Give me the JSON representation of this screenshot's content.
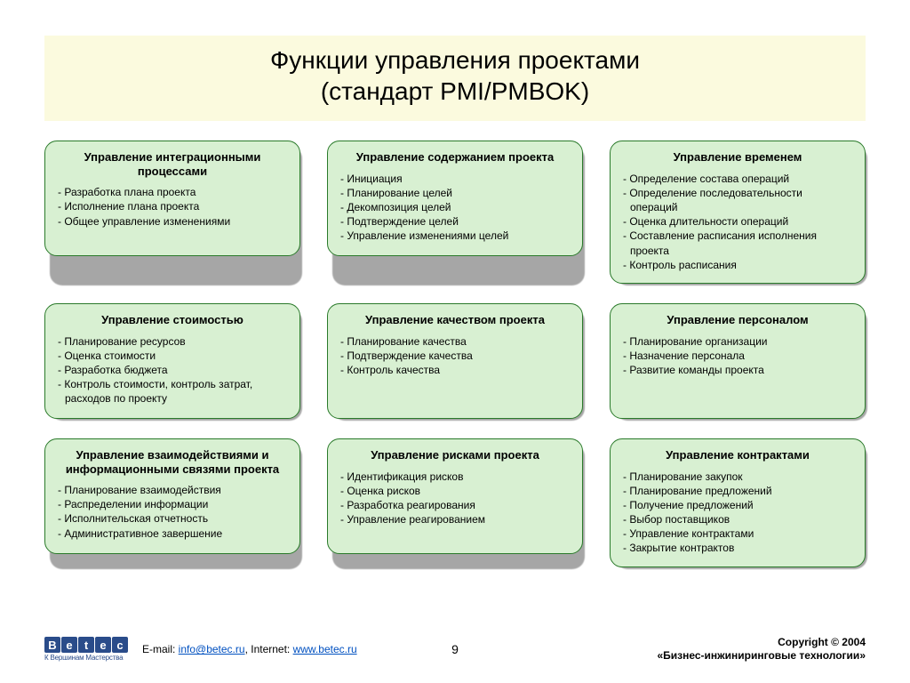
{
  "title_bg": "#fbfade",
  "card_bg": "#d8f0d2",
  "card_border": "#2a7a2a",
  "title_line1": "Функции управления проектами",
  "title_line2": "(стандарт PMI/PMBOK)",
  "cards": [
    {
      "title": "Управление интеграционными процессами",
      "items": [
        "Разработка плана проекта",
        "Исполнение плана проекта",
        "Общее управление изменениями"
      ]
    },
    {
      "title": "Управление содержанием проекта",
      "items": [
        "Инициация",
        "Планирование целей",
        "Декомпозиция целей",
        "Подтверждение целей",
        "Управление изменениями целей"
      ]
    },
    {
      "title": "Управление временем",
      "items": [
        "Определение состава операций",
        "Определение последовательности операций",
        "Оценка длительности операций",
        "Составление расписания исполнения проекта",
        "Контроль расписания"
      ]
    },
    {
      "title": "Управление стоимостью",
      "items": [
        "Планирование ресурсов",
        "Оценка стоимости",
        "Разработка бюджета",
        "Контроль стоимости, контроль затрат, расходов по проекту"
      ]
    },
    {
      "title": "Управление качеством проекта",
      "items": [
        "Планирование качества",
        "Подтверждение качества",
        "Контроль качества"
      ]
    },
    {
      "title": "Управление персоналом",
      "items": [
        "Планирование организации",
        "Назначение персонала",
        "Развитие команды проекта"
      ]
    },
    {
      "title": "Управление взаимодействиями и информационными связями проекта",
      "items": [
        "Планирование взаимодействия",
        "Распределении информации",
        "Исполнительская отчетность",
        "Административное завершение"
      ]
    },
    {
      "title": "Управление рисками проекта",
      "items": [
        "Идентификация рисков",
        "Оценка рисков",
        "Разработка реагирования",
        "Управление реагированием"
      ]
    },
    {
      "title": "Управление контрактами",
      "items": [
        "Планирование закупок",
        "Планирование предложений",
        "Получение предложений",
        "Выбор поставщиков",
        "Управление контрактами",
        "Закрытие контрактов"
      ]
    }
  ],
  "footer": {
    "logo_letters": [
      "B",
      "e",
      "t",
      "e",
      "c"
    ],
    "logo_sub": "К Вершинам Мастерства",
    "contact_prefix": "E-mail: ",
    "email": "info@betec.ru",
    "contact_mid": ", Internet: ",
    "url": "www.betec.ru",
    "page_number": "9",
    "copyright_line1": "Copyright © 2004",
    "copyright_line2": "«Бизнес-инжиниринговые технологии»"
  }
}
